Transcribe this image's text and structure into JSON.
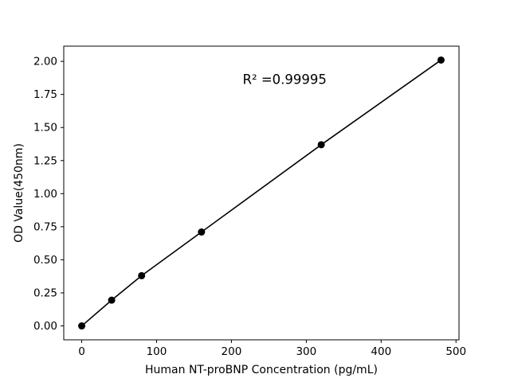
{
  "chart_data": {
    "type": "line",
    "x": [
      0,
      40,
      80,
      160,
      320,
      480
    ],
    "y": [
      0.0,
      0.195,
      0.38,
      0.71,
      1.37,
      2.01
    ],
    "title": "",
    "xlabel": "Human NT-proBNP Concentration (pg/mL)",
    "ylabel": "OD Value(450nm)",
    "xlim": [
      -24,
      504
    ],
    "ylim": [
      -0.105,
      2.115
    ],
    "xticks": [
      0,
      100,
      200,
      300,
      400,
      500
    ],
    "yticks": [
      0.0,
      0.25,
      0.5,
      0.75,
      1.0,
      1.25,
      1.5,
      1.75,
      2.0
    ],
    "annotation": {
      "text": "R² =0.99995",
      "x": 215,
      "y": 1.83
    },
    "line_color": "#000000",
    "marker_color": "#000000",
    "axis_color": "#000000",
    "background_color": "#ffffff",
    "grid": false,
    "legend": null
  }
}
